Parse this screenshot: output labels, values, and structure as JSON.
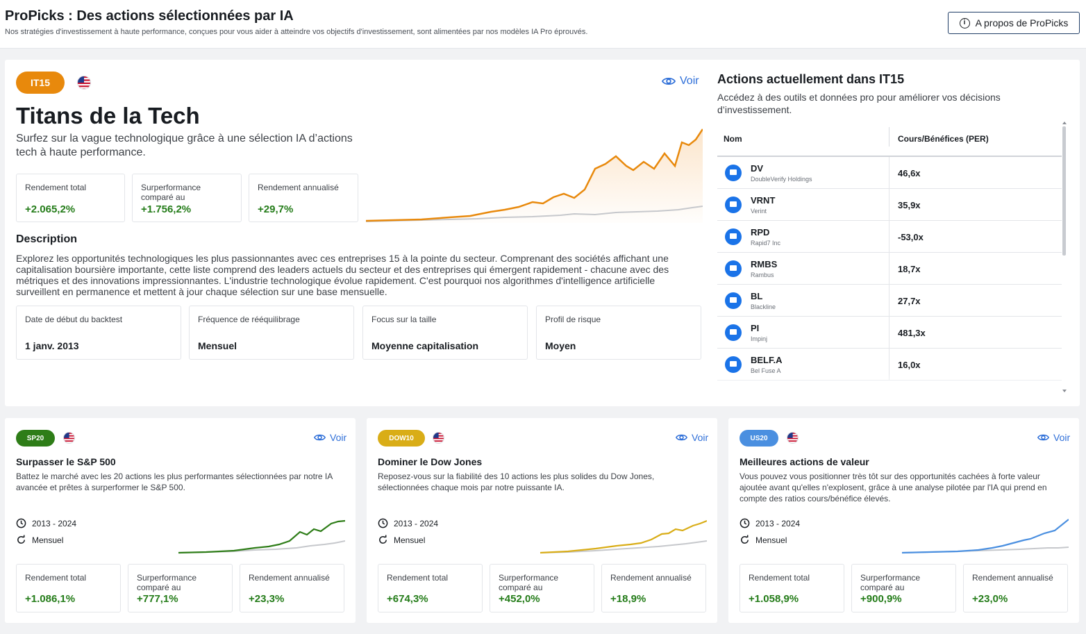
{
  "header": {
    "title": "ProPicks : Des actions sélectionnées par IA",
    "subtitle": "Nos stratégies d'investissement à haute performance, conçues pour vous aider à atteindre vos objectifs d'investissement, sont alimentées par nos modèles IA Pro éprouvés.",
    "about_button": "A propos de ProPicks"
  },
  "featured": {
    "tag": "IT15",
    "tag_color": "#e8890c",
    "voir": "Voir",
    "title": "Titans de la Tech",
    "description": "Surfez sur la vague technologique grâce à une sélection IA d’actions tech à haute performance.",
    "stats": [
      {
        "label": "Rendement total",
        "value": "+2.065,2%"
      },
      {
        "label": "Surperformance comparé au",
        "value": "+1.756,2%"
      },
      {
        "label": "Rendement annualisé",
        "value": "+29,7%"
      }
    ],
    "section_title": "Description",
    "long_description": "Explorez les opportunités technologiques les plus passionnantes avec ces entreprises 15 à la pointe du secteur. Comprenant des sociétés affichant une capitalisation boursière importante, cette liste comprend des leaders actuels du secteur et des entreprises qui émergent rapidement - chacune avec des métriques et des innovations impressionnantes. L'industrie technologique évolue rapidement. C'est pourquoi nos algorithmes d'intelligence artificielle surveillent en permanence et mettent à jour chaque sélection sur une base mensuelle.",
    "info": [
      {
        "label": "Date de début du backtest",
        "value": "1 janv. 2013"
      },
      {
        "label": "Fréquence de rééquilibrage",
        "value": "Mensuel"
      },
      {
        "label": "Focus sur la taille",
        "value": "Moyenne capitalisation"
      },
      {
        "label": "Profil de risque",
        "value": "Moyen"
      }
    ]
  },
  "holdings": {
    "title": "Actions actuellement dans IT15",
    "subtitle": "Accédez à des outils et données pro pour améliorer vos décisions d’investissement.",
    "columns": [
      "Nom",
      "Cours/Bénéfices (PER)"
    ],
    "rows": [
      {
        "symbol": "DV",
        "name": "DoubleVerify Holdings",
        "per": "46,6x"
      },
      {
        "symbol": "VRNT",
        "name": "Verint",
        "per": "35,9x"
      },
      {
        "symbol": "RPD",
        "name": "Rapid7 Inc",
        "per": "-53,0x"
      },
      {
        "symbol": "RMBS",
        "name": "Rambus",
        "per": "18,7x"
      },
      {
        "symbol": "BL",
        "name": "Blackline",
        "per": "27,7x"
      },
      {
        "symbol": "PI",
        "name": "Impinj",
        "per": "481,3x"
      },
      {
        "symbol": "BELF.A",
        "name": "Bel Fuse A",
        "per": "16,0x"
      }
    ]
  },
  "cards": [
    {
      "tag": "SP20",
      "tag_color": "#2e7d18",
      "line_color": "#2e7d18",
      "voir": "Voir",
      "title": "Surpasser le S&P 500",
      "description": "Battez le marché avec les 20 actions les plus performantes sélectionnées par notre IA avancée et prêtes à surperformer le S&P 500.",
      "period": "2013 - 2024",
      "frequency": "Mensuel",
      "stats": [
        {
          "label": "Rendement total",
          "value": "+1.086,1%"
        },
        {
          "label": "Surperformance comparé au",
          "value": "+777,1%"
        },
        {
          "label": "Rendement annualisé",
          "value": "+23,3%"
        }
      ]
    },
    {
      "tag": "DOW10",
      "tag_color": "#d9ad17",
      "line_color": "#d9ad17",
      "voir": "Voir",
      "title": "Dominer le Dow Jones",
      "description": "Reposez-vous sur la fiabilité des 10 actions les plus solides du Dow Jones, sélectionnées chaque mois par notre puissante IA.",
      "period": "2013 - 2024",
      "frequency": "Mensuel",
      "stats": [
        {
          "label": "Rendement total",
          "value": "+674,3%"
        },
        {
          "label": "Surperformance comparé au",
          "value": "+452,0%"
        },
        {
          "label": "Rendement annualisé",
          "value": "+18,9%"
        }
      ]
    },
    {
      "tag": "US20",
      "tag_color": "#4a8fe0",
      "line_color": "#4a8fe0",
      "voir": "Voir",
      "title": "Meilleures actions de valeur",
      "description": "Vous pouvez vous positionner très tôt sur des opportunités cachées à forte valeur ajoutée avant qu'elles n'explosent, grâce à une analyse pilotée par l'IA qui prend en compte des ratios cours/bénéfice élevés.",
      "period": "2013 - 2024",
      "frequency": "Mensuel",
      "stats": [
        {
          "label": "Rendement total",
          "value": "+1.058,9%"
        },
        {
          "label": "Surperformance comparé au",
          "value": "+900,9%"
        },
        {
          "label": "Rendement annualisé",
          "value": "+23,0%"
        }
      ]
    }
  ]
}
